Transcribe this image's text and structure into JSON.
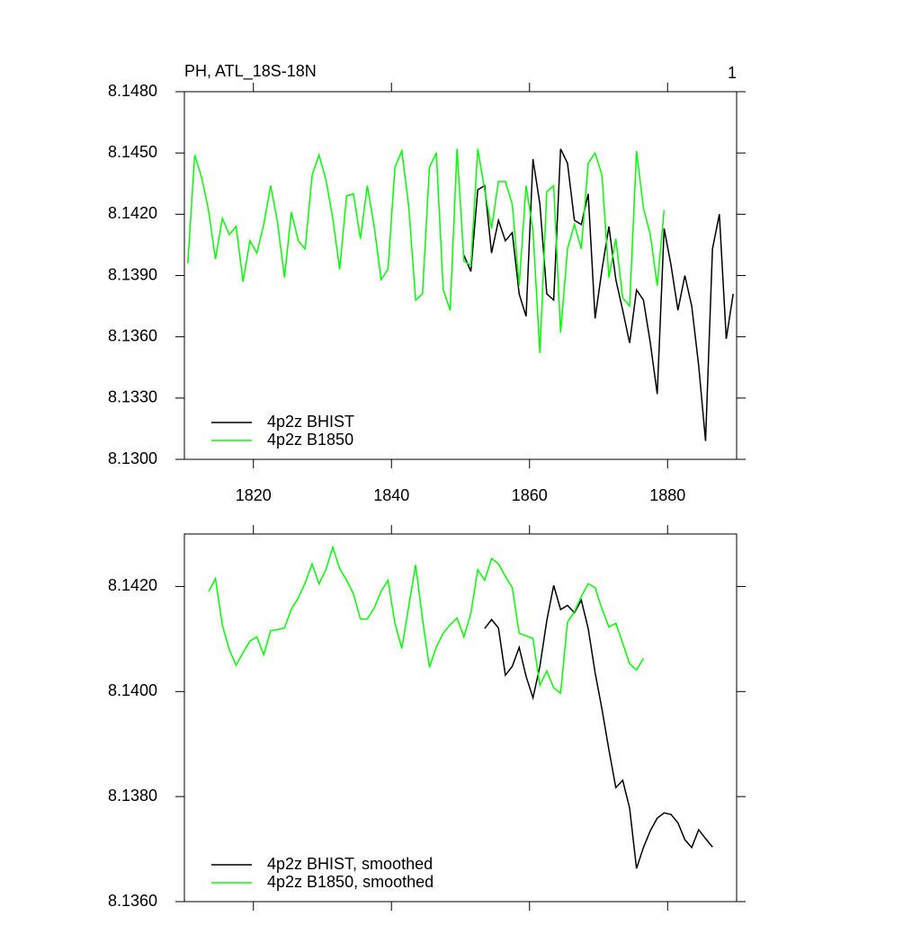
{
  "chart_data": [
    {
      "type": "line",
      "title": "PH, ATL_18S-18N",
      "corner_label": "1",
      "xlim": [
        1810,
        1890
      ],
      "xticks": [
        1820,
        1840,
        1860,
        1880
      ],
      "tick_labels": true,
      "ylim": [
        8.13,
        8.148
      ],
      "yticks": [
        {
          "value": 8.13,
          "label": "8.1300"
        },
        {
          "value": 8.133,
          "label": "8.1330"
        },
        {
          "value": 8.136,
          "label": "8.1360"
        },
        {
          "value": 8.139,
          "label": "8.1390"
        },
        {
          "value": 8.142,
          "label": "8.1420"
        },
        {
          "value": 8.145,
          "label": "8.1450"
        },
        {
          "value": 8.148,
          "label": "8.1480"
        }
      ],
      "legend": "bottom-left",
      "series": [
        {
          "name": "4p2z BHIST",
          "color": "#000000",
          "x": [
            1850.5,
            1851.5,
            1852.5,
            1853.5,
            1854.5,
            1855.5,
            1856.5,
            1857.5,
            1858.5,
            1859.5,
            1860.5,
            1861.5,
            1862.5,
            1863.5,
            1864.5,
            1865.5,
            1866.5,
            1867.5,
            1868.5,
            1869.5,
            1870.5,
            1871.5,
            1872.5,
            1873.5,
            1874.5,
            1875.5,
            1876.5,
            1877.5,
            1878.5,
            1879.5,
            1880.5,
            1881.5,
            1882.5,
            1883.5,
            1884.5,
            1885.5,
            1886.5,
            1887.5,
            1888.5,
            1889.5
          ],
          "values": [
            8.14,
            8.1392,
            8.1432,
            8.1434,
            8.1401,
            8.1417,
            8.1407,
            8.1411,
            8.1381,
            8.137,
            8.1447,
            8.1425,
            8.1381,
            8.1378,
            8.1452,
            8.1445,
            8.1417,
            8.1415,
            8.143,
            8.1369,
            8.1393,
            8.1414,
            8.1388,
            8.1373,
            8.1357,
            8.1383,
            8.1378,
            8.1357,
            8.1332,
            8.1413,
            8.1395,
            8.1373,
            8.139,
            8.1375,
            8.1346,
            8.1309,
            8.1403,
            8.142,
            8.1359,
            8.1381
          ]
        },
        {
          "name": "4p2z B1850",
          "color": "#00ff00",
          "x": [
            1810.5,
            1811.5,
            1812.5,
            1813.5,
            1814.5,
            1815.5,
            1816.5,
            1817.5,
            1818.5,
            1819.5,
            1820.5,
            1821.5,
            1822.5,
            1823.5,
            1824.5,
            1825.5,
            1826.5,
            1827.5,
            1828.5,
            1829.5,
            1830.5,
            1831.5,
            1832.5,
            1833.5,
            1834.5,
            1835.5,
            1836.5,
            1837.5,
            1838.5,
            1839.5,
            1840.5,
            1841.5,
            1842.5,
            1843.5,
            1844.5,
            1845.5,
            1846.5,
            1847.5,
            1848.5,
            1849.5,
            1850.5,
            1851.5,
            1852.5,
            1853.5,
            1854.5,
            1855.5,
            1856.5,
            1857.5,
            1858.5,
            1859.5,
            1860.5,
            1861.5,
            1862.5,
            1863.5,
            1864.5,
            1865.5,
            1866.5,
            1867.5,
            1868.5,
            1869.5,
            1870.5,
            1871.5,
            1872.5,
            1873.5,
            1874.5,
            1875.5,
            1876.5,
            1877.5,
            1878.5,
            1879.5
          ],
          "values": [
            8.1396,
            8.1449,
            8.1438,
            8.1422,
            8.1398,
            8.1418,
            8.141,
            8.1414,
            8.1387,
            8.1407,
            8.1401,
            8.1415,
            8.1434,
            8.1416,
            8.1389,
            8.1421,
            8.1407,
            8.1403,
            8.1439,
            8.1449,
            8.1437,
            8.1418,
            8.1393,
            8.1429,
            8.143,
            8.1408,
            8.1434,
            8.1414,
            8.1388,
            8.1393,
            8.1443,
            8.1451,
            8.1424,
            8.1378,
            8.1381,
            8.1443,
            8.145,
            8.1383,
            8.1373,
            8.1452,
            8.1397,
            8.1395,
            8.1452,
            8.1432,
            8.1413,
            8.1436,
            8.1436,
            8.1425,
            8.1385,
            8.1434,
            8.1412,
            8.1352,
            8.1431,
            8.1434,
            8.1362,
            8.1403,
            8.1415,
            8.1403,
            8.1445,
            8.145,
            8.1439,
            8.1389,
            8.1408,
            8.1379,
            8.1375,
            8.1451,
            8.1423,
            8.141,
            8.1385,
            8.1422
          ]
        }
      ]
    },
    {
      "type": "line",
      "xlim": [
        1810,
        1890
      ],
      "xticks": [
        1820,
        1840,
        1860,
        1880
      ],
      "tick_labels": false,
      "ylim": [
        8.136,
        8.143
      ],
      "yticks": [
        {
          "value": 8.136,
          "label": "8.1360"
        },
        {
          "value": 8.138,
          "label": "8.1380"
        },
        {
          "value": 8.14,
          "label": "8.1400"
        },
        {
          "value": 8.142,
          "label": "8.1420"
        }
      ],
      "legend": "bottom-left",
      "series": [
        {
          "name": "4p2z BHIST, smoothed",
          "color": "#000000",
          "x": [
            1853.5,
            1854.5,
            1855.5,
            1856.5,
            1857.5,
            1858.5,
            1859.5,
            1860.5,
            1861.5,
            1862.5,
            1863.5,
            1864.5,
            1865.5,
            1866.5,
            1867.5,
            1868.5,
            1869.5,
            1870.5,
            1871.5,
            1872.5,
            1873.5,
            1874.5,
            1875.5,
            1876.5,
            1877.5,
            1878.5,
            1879.5,
            1880.5,
            1881.5,
            1882.5,
            1883.5,
            1884.5,
            1885.5,
            1886.5
          ],
          "values": [
            8.1412,
            8.14137,
            8.14121,
            8.14031,
            8.14048,
            8.14084,
            8.14029,
            8.13988,
            8.14048,
            8.14135,
            8.14202,
            8.14156,
            8.14164,
            8.1415,
            8.14174,
            8.1412,
            8.14036,
            8.13966,
            8.13889,
            8.13817,
            8.13831,
            8.13778,
            8.13663,
            8.13703,
            8.13735,
            8.13759,
            8.13769,
            8.13766,
            8.1375,
            8.13718,
            8.13703,
            8.13737,
            8.1372,
            8.13704
          ]
        },
        {
          "name": "4p2z B1850, smoothed",
          "color": "#00ff00",
          "x": [
            1813.5,
            1814.5,
            1815.5,
            1816.5,
            1817.5,
            1818.5,
            1819.5,
            1820.5,
            1821.5,
            1822.5,
            1823.5,
            1824.5,
            1825.5,
            1826.5,
            1827.5,
            1828.5,
            1829.5,
            1830.5,
            1831.5,
            1832.5,
            1833.5,
            1834.5,
            1835.5,
            1836.5,
            1837.5,
            1838.5,
            1839.5,
            1840.5,
            1841.5,
            1842.5,
            1843.5,
            1844.5,
            1845.5,
            1846.5,
            1847.5,
            1848.5,
            1849.5,
            1850.5,
            1851.5,
            1852.5,
            1853.5,
            1854.5,
            1855.5,
            1856.5,
            1857.5,
            1858.5,
            1859.5,
            1860.5,
            1861.5,
            1862.5,
            1863.5,
            1864.5,
            1865.5,
            1866.5,
            1867.5,
            1868.5,
            1869.5,
            1870.5,
            1871.5,
            1872.5,
            1873.5,
            1874.5,
            1875.5,
            1876.5
          ],
          "values": [
            8.1419,
            8.14215,
            8.14127,
            8.1408,
            8.1405,
            8.14074,
            8.14096,
            8.14104,
            8.1407,
            8.14116,
            8.14118,
            8.14121,
            8.14157,
            8.14178,
            8.14207,
            8.14243,
            8.14205,
            8.14232,
            8.14275,
            8.14234,
            8.14212,
            8.14186,
            8.14138,
            8.14138,
            8.14159,
            8.14191,
            8.14212,
            8.1413,
            8.14082,
            8.14162,
            8.14241,
            8.14138,
            8.14046,
            8.14085,
            8.14111,
            8.14127,
            8.1414,
            8.14104,
            8.14149,
            8.14232,
            8.14212,
            8.14253,
            8.14243,
            8.14219,
            8.14198,
            8.14111,
            8.14106,
            8.14101,
            8.14012,
            8.14039,
            8.14007,
            8.13997,
            8.14132,
            8.14152,
            8.14181,
            8.14205,
            8.14198,
            8.14157,
            8.14123,
            8.1413,
            8.14092,
            8.14053,
            8.14041,
            8.14063
          ]
        }
      ]
    }
  ]
}
